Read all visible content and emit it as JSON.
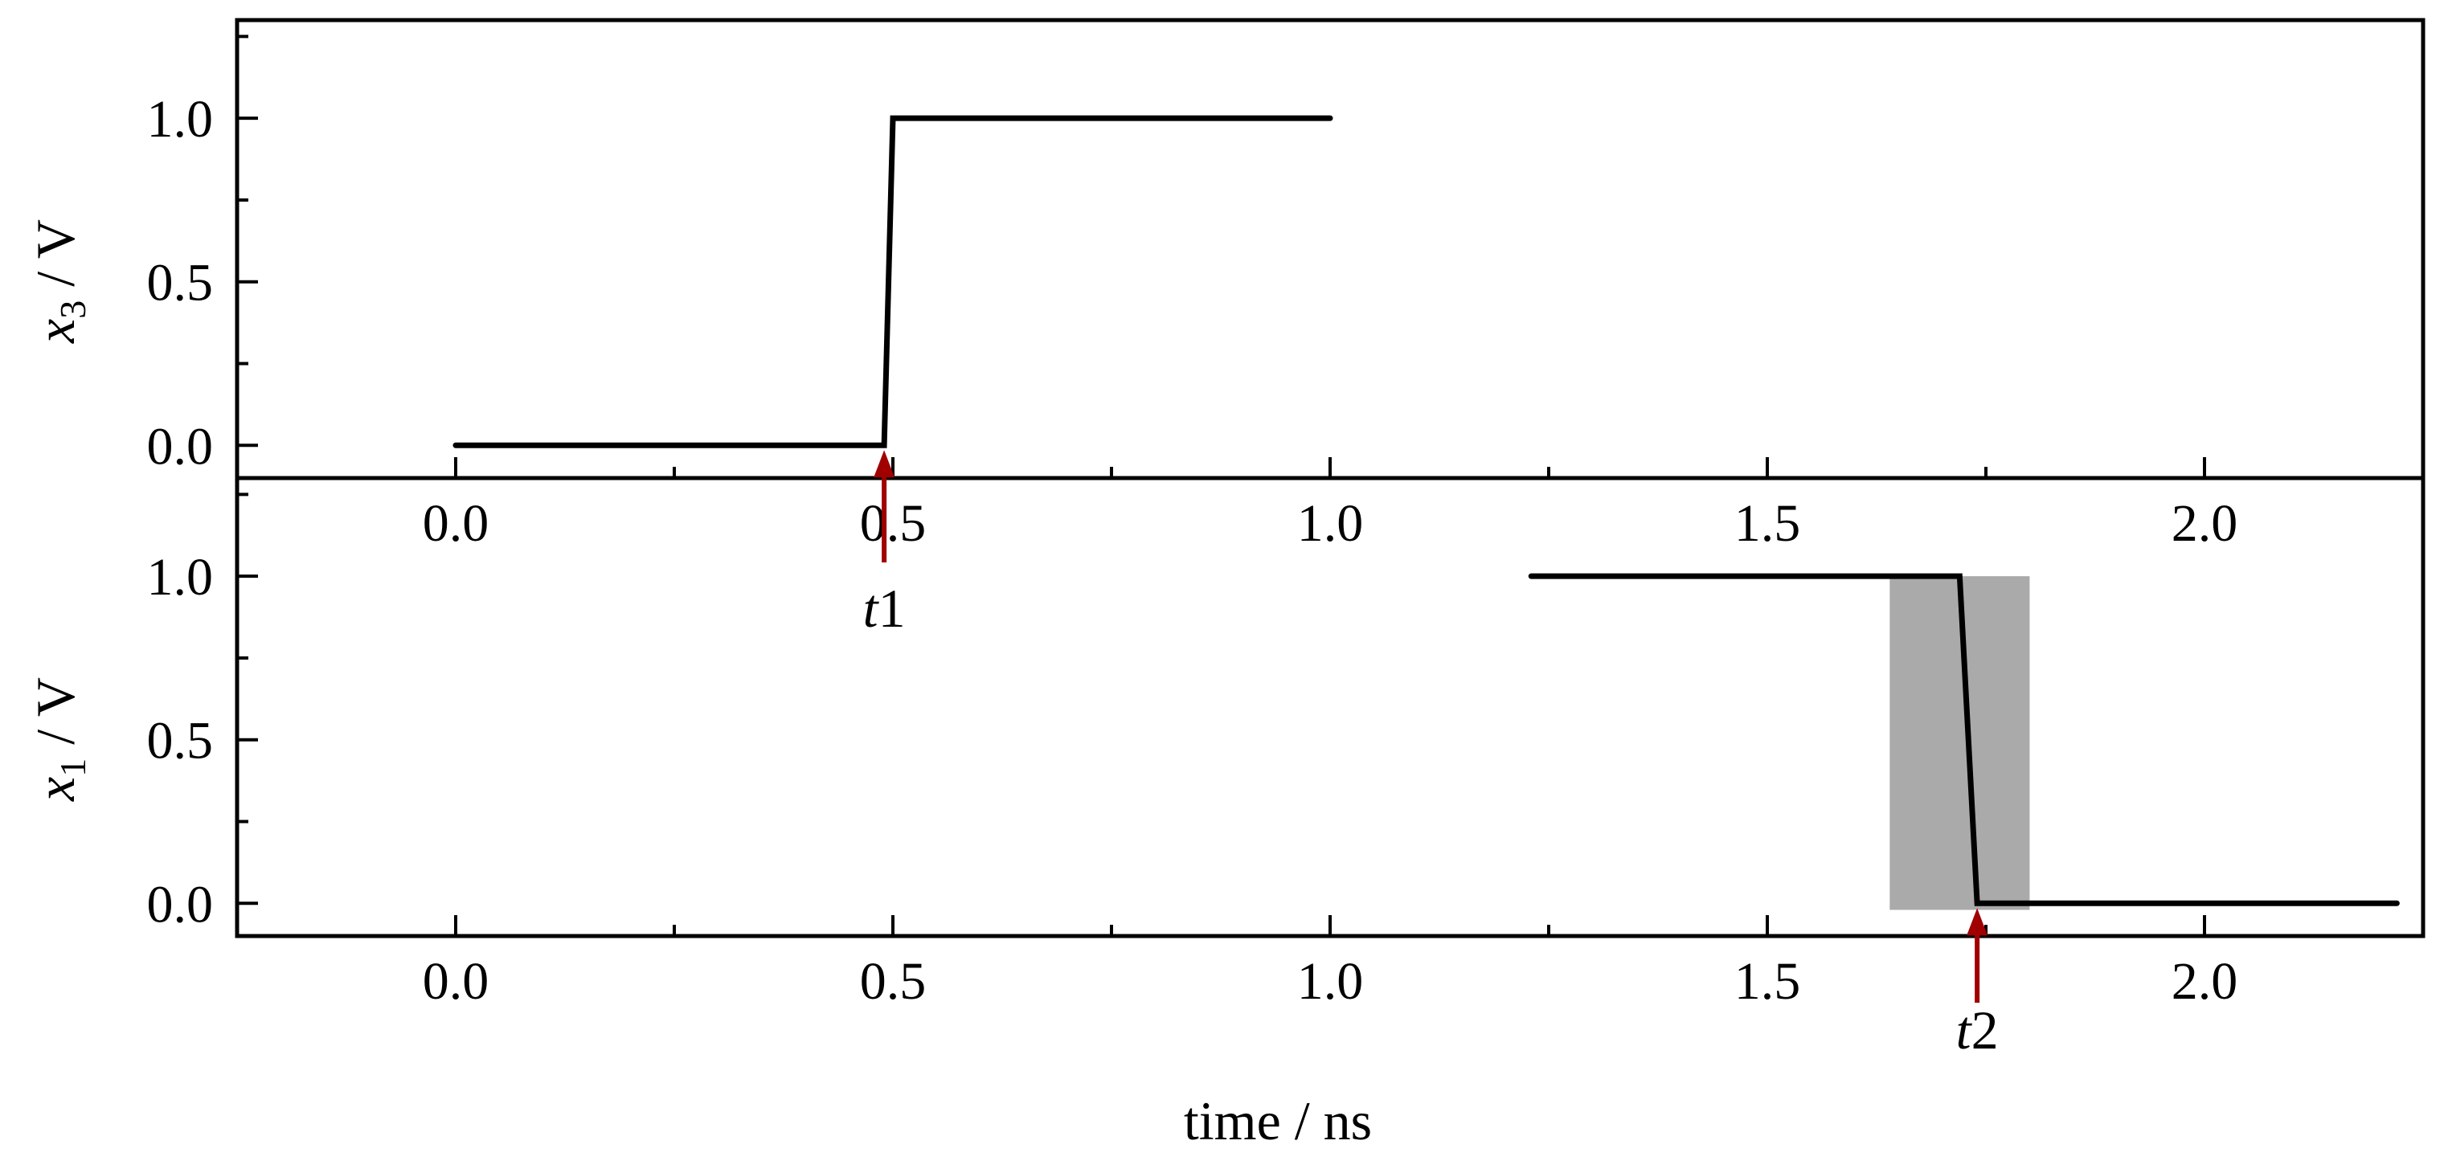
{
  "chart_data": [
    {
      "type": "line",
      "panel": "top",
      "ylabel": {
        "var": "x",
        "sub": "3",
        "unit": " / V"
      },
      "xlabel": "",
      "xlim": [
        -0.25,
        2.25
      ],
      "ylim": [
        -0.1,
        1.3
      ],
      "xticks": [
        0.0,
        0.5,
        1.0,
        1.5,
        2.0
      ],
      "xticklabels": [
        "0.0",
        "0.5",
        "1.0",
        "1.5",
        "2.0"
      ],
      "yticks": [
        0.0,
        0.5,
        1.0
      ],
      "yticklabels": [
        "0.0",
        "0.5",
        "1.0"
      ],
      "series": [
        {
          "x": [
            0.0,
            0.49,
            0.5,
            1.0
          ],
          "y": [
            0.0,
            0.0,
            1.0,
            1.0
          ]
        }
      ],
      "annotations": [
        {
          "label_var": "t",
          "label_num": "1",
          "x": 0.49,
          "color": "#a00000"
        }
      ]
    },
    {
      "type": "line",
      "panel": "bottom",
      "ylabel": {
        "var": "x",
        "sub": "1",
        "unit": " / V"
      },
      "xlabel": "time / ns",
      "xlim": [
        -0.25,
        2.25
      ],
      "ylim": [
        -0.1,
        1.3
      ],
      "xticks": [
        0.0,
        0.5,
        1.0,
        1.5,
        2.0
      ],
      "xticklabels": [
        "0.0",
        "0.5",
        "1.0",
        "1.5",
        "2.0"
      ],
      "yticks": [
        0.0,
        0.5,
        1.0
      ],
      "yticklabels": [
        "0.0",
        "0.5",
        "1.0"
      ],
      "series": [
        {
          "x": [
            1.23,
            1.72,
            1.74,
            2.22
          ],
          "y": [
            1.0,
            1.0,
            0.0,
            0.0
          ]
        }
      ],
      "shaded_region": {
        "x": [
          1.64,
          1.8
        ],
        "y": [
          -0.02,
          1.0
        ],
        "color": "#aaaaaa"
      },
      "annotations": [
        {
          "label_var": "t",
          "label_num": "2",
          "x": 1.74,
          "color": "#a00000"
        }
      ]
    }
  ]
}
